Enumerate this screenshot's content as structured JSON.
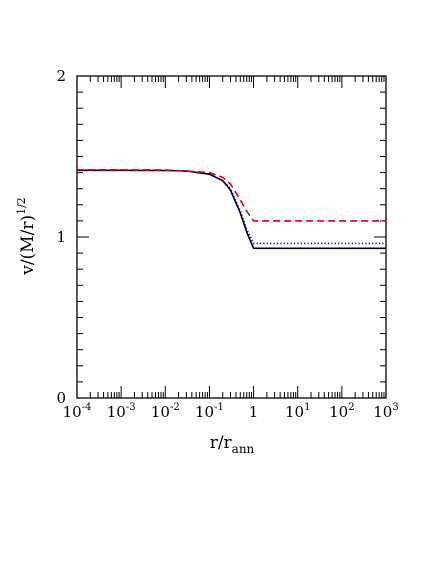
{
  "chart_data": {
    "type": "line",
    "title": "",
    "xlabel": {
      "base": "r/r",
      "sub": "ann"
    },
    "ylabel": {
      "base": "v/(M/r)",
      "sup": "1/2"
    },
    "xscale": "log",
    "xlim": [
      0.0001,
      1000
    ],
    "ylim": [
      0,
      2
    ],
    "grid": false,
    "legend": "none",
    "x_ticks": [
      {
        "base": "10",
        "exp": "-4"
      },
      {
        "base": "10",
        "exp": "-3"
      },
      {
        "base": "10",
        "exp": "-2"
      },
      {
        "base": "10",
        "exp": "-1"
      },
      {
        "base": "1",
        "exp": ""
      },
      {
        "base": "10",
        "exp": "1"
      },
      {
        "base": "10",
        "exp": "2"
      },
      {
        "base": "10",
        "exp": "3"
      }
    ],
    "y_ticks": [
      "0",
      "1",
      "2"
    ],
    "series": [
      {
        "style": "solid",
        "color": "#000000",
        "points": [
          [
            0.0001,
            1.414
          ],
          [
            0.001,
            1.414
          ],
          [
            0.01,
            1.413
          ],
          [
            0.03,
            1.41
          ],
          [
            0.1,
            1.39
          ],
          [
            0.2,
            1.35
          ],
          [
            0.3,
            1.29
          ],
          [
            0.5,
            1.15
          ],
          [
            0.7,
            1.03
          ],
          [
            1,
            0.93
          ],
          [
            10,
            0.93
          ],
          [
            100,
            0.93
          ],
          [
            1000,
            0.93
          ]
        ]
      },
      {
        "style": "dotted",
        "color": "#0000cc",
        "points": [
          [
            0.0001,
            1.414
          ],
          [
            0.001,
            1.414
          ],
          [
            0.01,
            1.413
          ],
          [
            0.03,
            1.41
          ],
          [
            0.1,
            1.39
          ],
          [
            0.2,
            1.35
          ],
          [
            0.3,
            1.3
          ],
          [
            0.5,
            1.16
          ],
          [
            0.7,
            1.05
          ],
          [
            1,
            0.96
          ],
          [
            10,
            0.96
          ],
          [
            100,
            0.96
          ],
          [
            1000,
            0.96
          ]
        ]
      },
      {
        "style": "dashed",
        "color": "#dd0000",
        "points": [
          [
            0.0001,
            1.417
          ],
          [
            0.001,
            1.417
          ],
          [
            0.01,
            1.416
          ],
          [
            0.03,
            1.41
          ],
          [
            0.1,
            1.4
          ],
          [
            0.2,
            1.37
          ],
          [
            0.3,
            1.33
          ],
          [
            0.5,
            1.23
          ],
          [
            0.7,
            1.16
          ],
          [
            1,
            1.1
          ],
          [
            10,
            1.1
          ],
          [
            100,
            1.1
          ],
          [
            1000,
            1.1
          ]
        ]
      }
    ]
  }
}
